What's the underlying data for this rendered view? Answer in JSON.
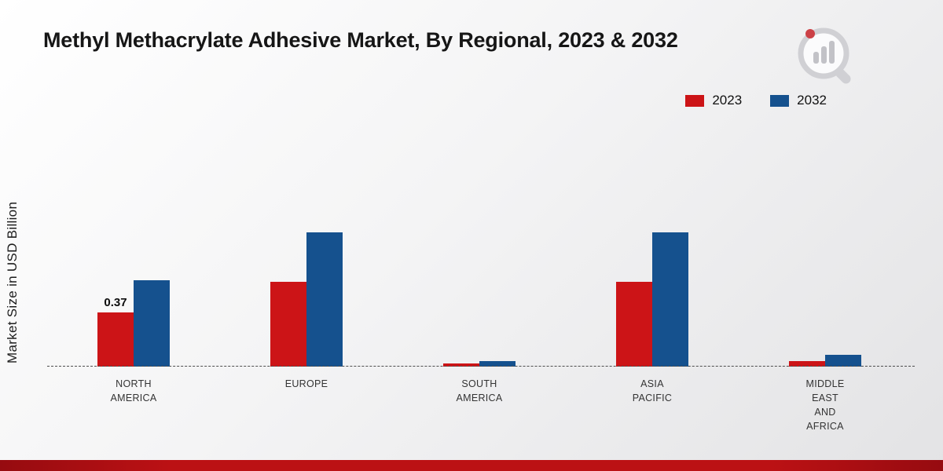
{
  "chart_data": {
    "type": "bar",
    "title": "Methyl Methacrylate Adhesive Market, By Regional, 2023 & 2032",
    "ylabel": "Market Size in USD Billion",
    "xlabel": "",
    "unit": "USD Billion",
    "categories": [
      "NORTH AMERICA",
      "EUROPE",
      "SOUTH AMERICA",
      "ASIA PACIFIC",
      "MIDDLE EAST AND AFRICA"
    ],
    "category_lines": [
      [
        "NORTH",
        "AMERICA"
      ],
      [
        "EUROPE"
      ],
      [
        "SOUTH",
        "AMERICA"
      ],
      [
        "ASIA",
        "PACIFIC"
      ],
      [
        "MIDDLE",
        "EAST",
        "AND",
        "AFRICA"
      ]
    ],
    "series": [
      {
        "name": "2023",
        "color": "#cc1417",
        "values": [
          0.37,
          0.58,
          0.02,
          0.58,
          0.04
        ],
        "labels": [
          "0.37",
          "",
          "",
          "",
          ""
        ]
      },
      {
        "name": "2032",
        "color": "#15518e",
        "values": [
          0.59,
          0.92,
          0.04,
          0.92,
          0.08
        ],
        "labels": [
          "",
          "",
          "",
          "",
          ""
        ]
      }
    ],
    "ylim": [
      0,
      1.0
    ],
    "grid": false,
    "baseline_style": "dashed",
    "legend_position": "top-right"
  },
  "branding": {
    "footer_color": "#bb1114",
    "logo_name": "market-research-logo"
  }
}
